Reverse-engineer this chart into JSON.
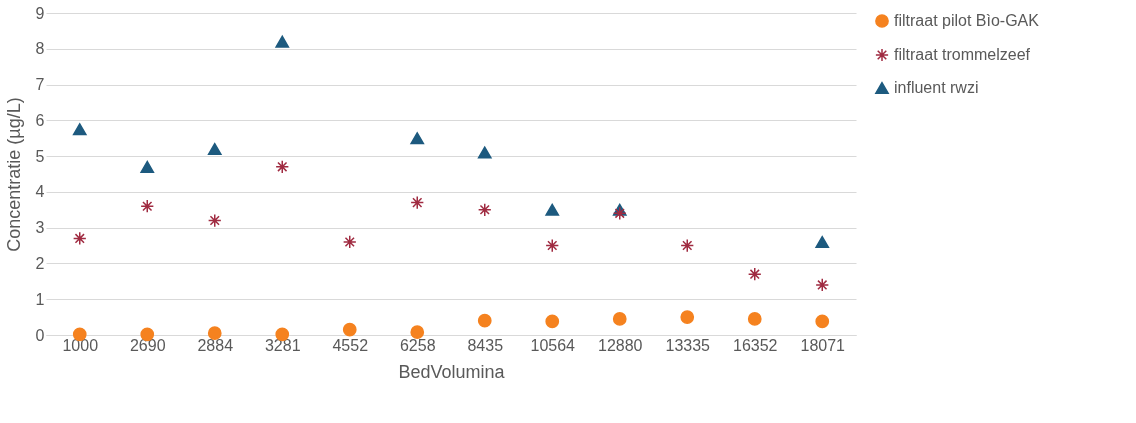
{
  "chart_data": {
    "type": "scatter",
    "xlabel": "BedVolumina",
    "ylabel": "Concentratie (µg/L)",
    "categories": [
      "1000",
      "2690",
      "2884",
      "3281",
      "4552",
      "6258",
      "8435",
      "10564",
      "12880",
      "13335",
      "16352",
      "18071"
    ],
    "ylim": [
      0,
      9
    ],
    "yticks": [
      0,
      1,
      2,
      3,
      4,
      5,
      6,
      7,
      8,
      9
    ],
    "grid": "y",
    "legend": "right",
    "series": [
      {
        "name": "filtraat pilot Bìo-GAK",
        "color": "#f5821f",
        "marker": "circle",
        "values": [
          0.02,
          0.02,
          0.05,
          0.02,
          0.15,
          0.08,
          0.4,
          0.38,
          0.45,
          0.5,
          0.45,
          0.38
        ]
      },
      {
        "name": "filtraat trommelzeef",
        "color": "#a02b41",
        "marker": "cross",
        "values": [
          2.7,
          3.6,
          3.2,
          4.7,
          2.6,
          3.7,
          3.5,
          2.5,
          3.4,
          2.5,
          1.7,
          1.4
        ]
      },
      {
        "name": "influent rwzi",
        "color": "#1d5a7f",
        "marker": "triangle",
        "values": [
          5.75,
          4.7,
          5.2,
          8.2,
          null,
          5.5,
          5.1,
          3.5,
          3.5,
          null,
          null,
          2.6
        ]
      }
    ]
  }
}
